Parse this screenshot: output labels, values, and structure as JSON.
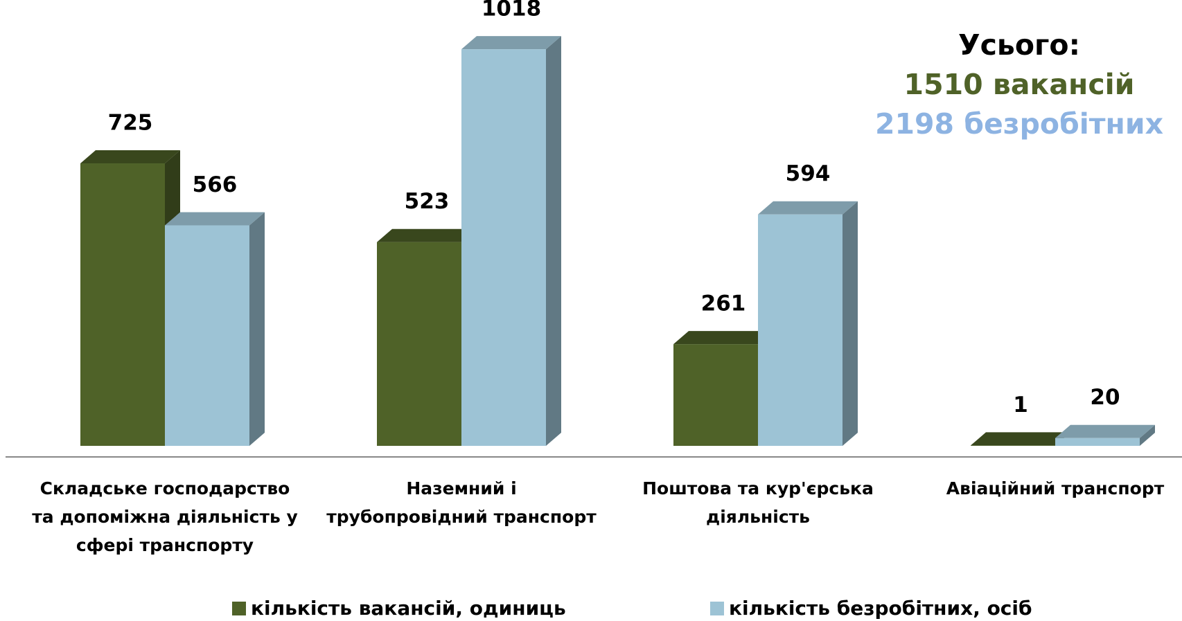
{
  "chart_data": {
    "type": "bar3d",
    "categories": [
      "Складське господарство та допоміжна діяльність у сфері транспорту",
      "Наземний і трубопровідний транспорт",
      "Поштова та кур'єрська діяльність",
      "Авіаційний транспорт"
    ],
    "series": [
      {
        "name": "кількість вакансій, одиниць",
        "color": "#4f6228",
        "values": [
          725,
          523,
          261,
          1
        ]
      },
      {
        "name": "кількість безробітних, осіб",
        "color": "#9dc3d5",
        "values": [
          566,
          1018,
          594,
          20
        ]
      }
    ],
    "ylim": [
      0,
      1100
    ],
    "annotations": [
      {
        "text": "Усього:",
        "color": "#000000"
      },
      {
        "text": "1510 вакансій",
        "color": "#4f6228"
      },
      {
        "text": "2198 безробітних",
        "color": "#8db3e2"
      }
    ]
  }
}
